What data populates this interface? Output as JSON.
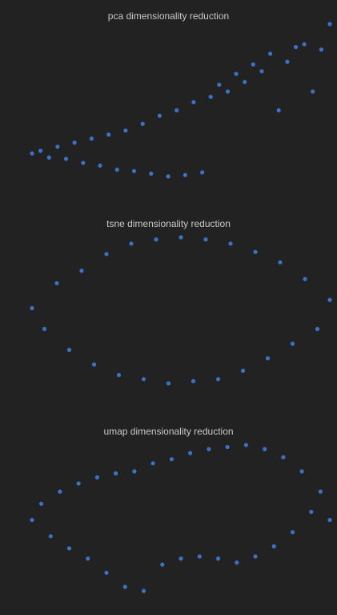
{
  "theme": {
    "background": "#222222",
    "point_color": "#3a72c8",
    "title_color": "#c8c8c8"
  },
  "chart_data": [
    {
      "type": "scatter",
      "title": "pca dimensionality reduction",
      "xlabel": "",
      "ylabel": "",
      "grid": false,
      "axes_visible": false,
      "series": [
        {
          "color": "#3a72c8",
          "x": [
            -2.0,
            -1.6,
            -1.2,
            -0.8,
            -0.4,
            0.0,
            0.4,
            0.8,
            1.2,
            1.6,
            2.0,
            2.4,
            2.8,
            3.2,
            3.6,
            4.0,
            4.4,
            4.8,
            5.2,
            5.6,
            6.0,
            6.4,
            6.8,
            7.2,
            7.6,
            8.0,
            8.4,
            8.8,
            9.2,
            9.6,
            10.0,
            10.4,
            10.8,
            11.2,
            11.6,
            12.0
          ],
          "y": [
            0.0,
            0.2,
            -0.3,
            0.5,
            -0.4,
            0.8,
            -0.7,
            1.1,
            -0.9,
            1.4,
            -1.2,
            1.7,
            -1.3,
            2.2,
            -1.5,
            2.8,
            -1.7,
            3.2,
            -1.6,
            3.8,
            -1.4,
            4.2,
            5.1,
            4.6,
            5.9,
            5.3,
            6.6,
            6.1,
            7.4,
            3.2,
            6.8,
            7.9,
            8.1,
            4.6,
            7.7,
            9.6
          ]
        }
      ]
    },
    {
      "type": "scatter",
      "title": "tsne dimensionality reduction",
      "xlabel": "",
      "ylabel": "",
      "grid": false,
      "axes_visible": false,
      "series": [
        {
          "color": "#3a72c8",
          "x": [
            -60,
            -55,
            -50,
            -45,
            -40,
            -35,
            -30,
            -25,
            -20,
            -15,
            -10,
            -5,
            0,
            5,
            10,
            15,
            20,
            25,
            30,
            35,
            40,
            45,
            50,
            55,
            60
          ],
          "y": [
            2,
            -8,
            14,
            -18,
            20,
            -25,
            28,
            -30,
            33,
            -32,
            35,
            -34,
            36,
            -33,
            35,
            -32,
            33,
            -28,
            29,
            -22,
            24,
            -15,
            16,
            -8,
            6
          ]
        }
      ]
    },
    {
      "type": "scatter",
      "title": "umap dimensionality reduction",
      "xlabel": "",
      "ylabel": "",
      "grid": false,
      "axes_visible": false,
      "series": [
        {
          "color": "#3a72c8",
          "x": [
            -8.0,
            -7.5,
            -7.0,
            -6.5,
            -6.0,
            -5.5,
            -5.0,
            -4.5,
            -4.0,
            -3.5,
            -3.0,
            -2.5,
            -2.0,
            -1.5,
            -1.0,
            -0.5,
            0.0,
            0.5,
            1.0,
            1.5,
            2.0,
            2.5,
            3.0,
            3.5,
            4.0,
            4.5,
            5.0,
            5.5,
            6.0,
            6.5,
            7.0,
            7.5,
            8.0
          ],
          "y": [
            0.0,
            0.8,
            -0.8,
            1.4,
            -1.4,
            1.8,
            -1.9,
            2.1,
            -2.6,
            2.3,
            -3.3,
            2.4,
            -3.5,
            2.8,
            -2.2,
            3.0,
            -1.9,
            3.3,
            -1.8,
            3.5,
            -1.9,
            3.6,
            -2.1,
            3.7,
            -1.8,
            3.5,
            -1.3,
            3.1,
            -0.6,
            2.4,
            0.4,
            1.4,
            0.0
          ]
        }
      ]
    }
  ]
}
